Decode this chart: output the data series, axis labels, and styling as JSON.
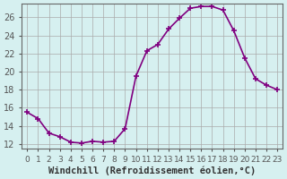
{
  "x": [
    0,
    1,
    2,
    3,
    4,
    5,
    6,
    7,
    8,
    9,
    10,
    11,
    12,
    13,
    14,
    15,
    16,
    17,
    18,
    19,
    20,
    21,
    22,
    23
  ],
  "y": [
    15.5,
    14.8,
    13.2,
    12.8,
    12.2,
    12.1,
    12.3,
    12.2,
    12.3,
    13.7,
    19.5,
    22.3,
    23.0,
    24.7,
    25.9,
    27.0,
    27.2,
    27.2,
    26.8,
    24.5,
    21.5,
    19.2,
    18.5,
    18.0
  ],
  "line_color": "#800080",
  "bg_color": "#d6f0f0",
  "grid_color": "#aaaaaa",
  "xlabel": "Windchill (Refroidissement éolien,°C)",
  "ylabel": "",
  "xlim": [
    -0.5,
    23.5
  ],
  "ylim": [
    11.5,
    27.5
  ],
  "yticks": [
    12,
    14,
    16,
    18,
    20,
    22,
    24,
    26
  ],
  "xtick_labels": [
    "0",
    "1",
    "2",
    "3",
    "4",
    "5",
    "6",
    "7",
    "8",
    "9",
    "10",
    "11",
    "12",
    "13",
    "14",
    "15",
    "16",
    "17",
    "18",
    "19",
    "20",
    "21",
    "22",
    "23"
  ],
  "marker": "+",
  "markersize": 5,
  "linewidth": 1.2,
  "xlabel_fontsize": 7.5,
  "tick_fontsize": 7,
  "tick_color": "#555555"
}
